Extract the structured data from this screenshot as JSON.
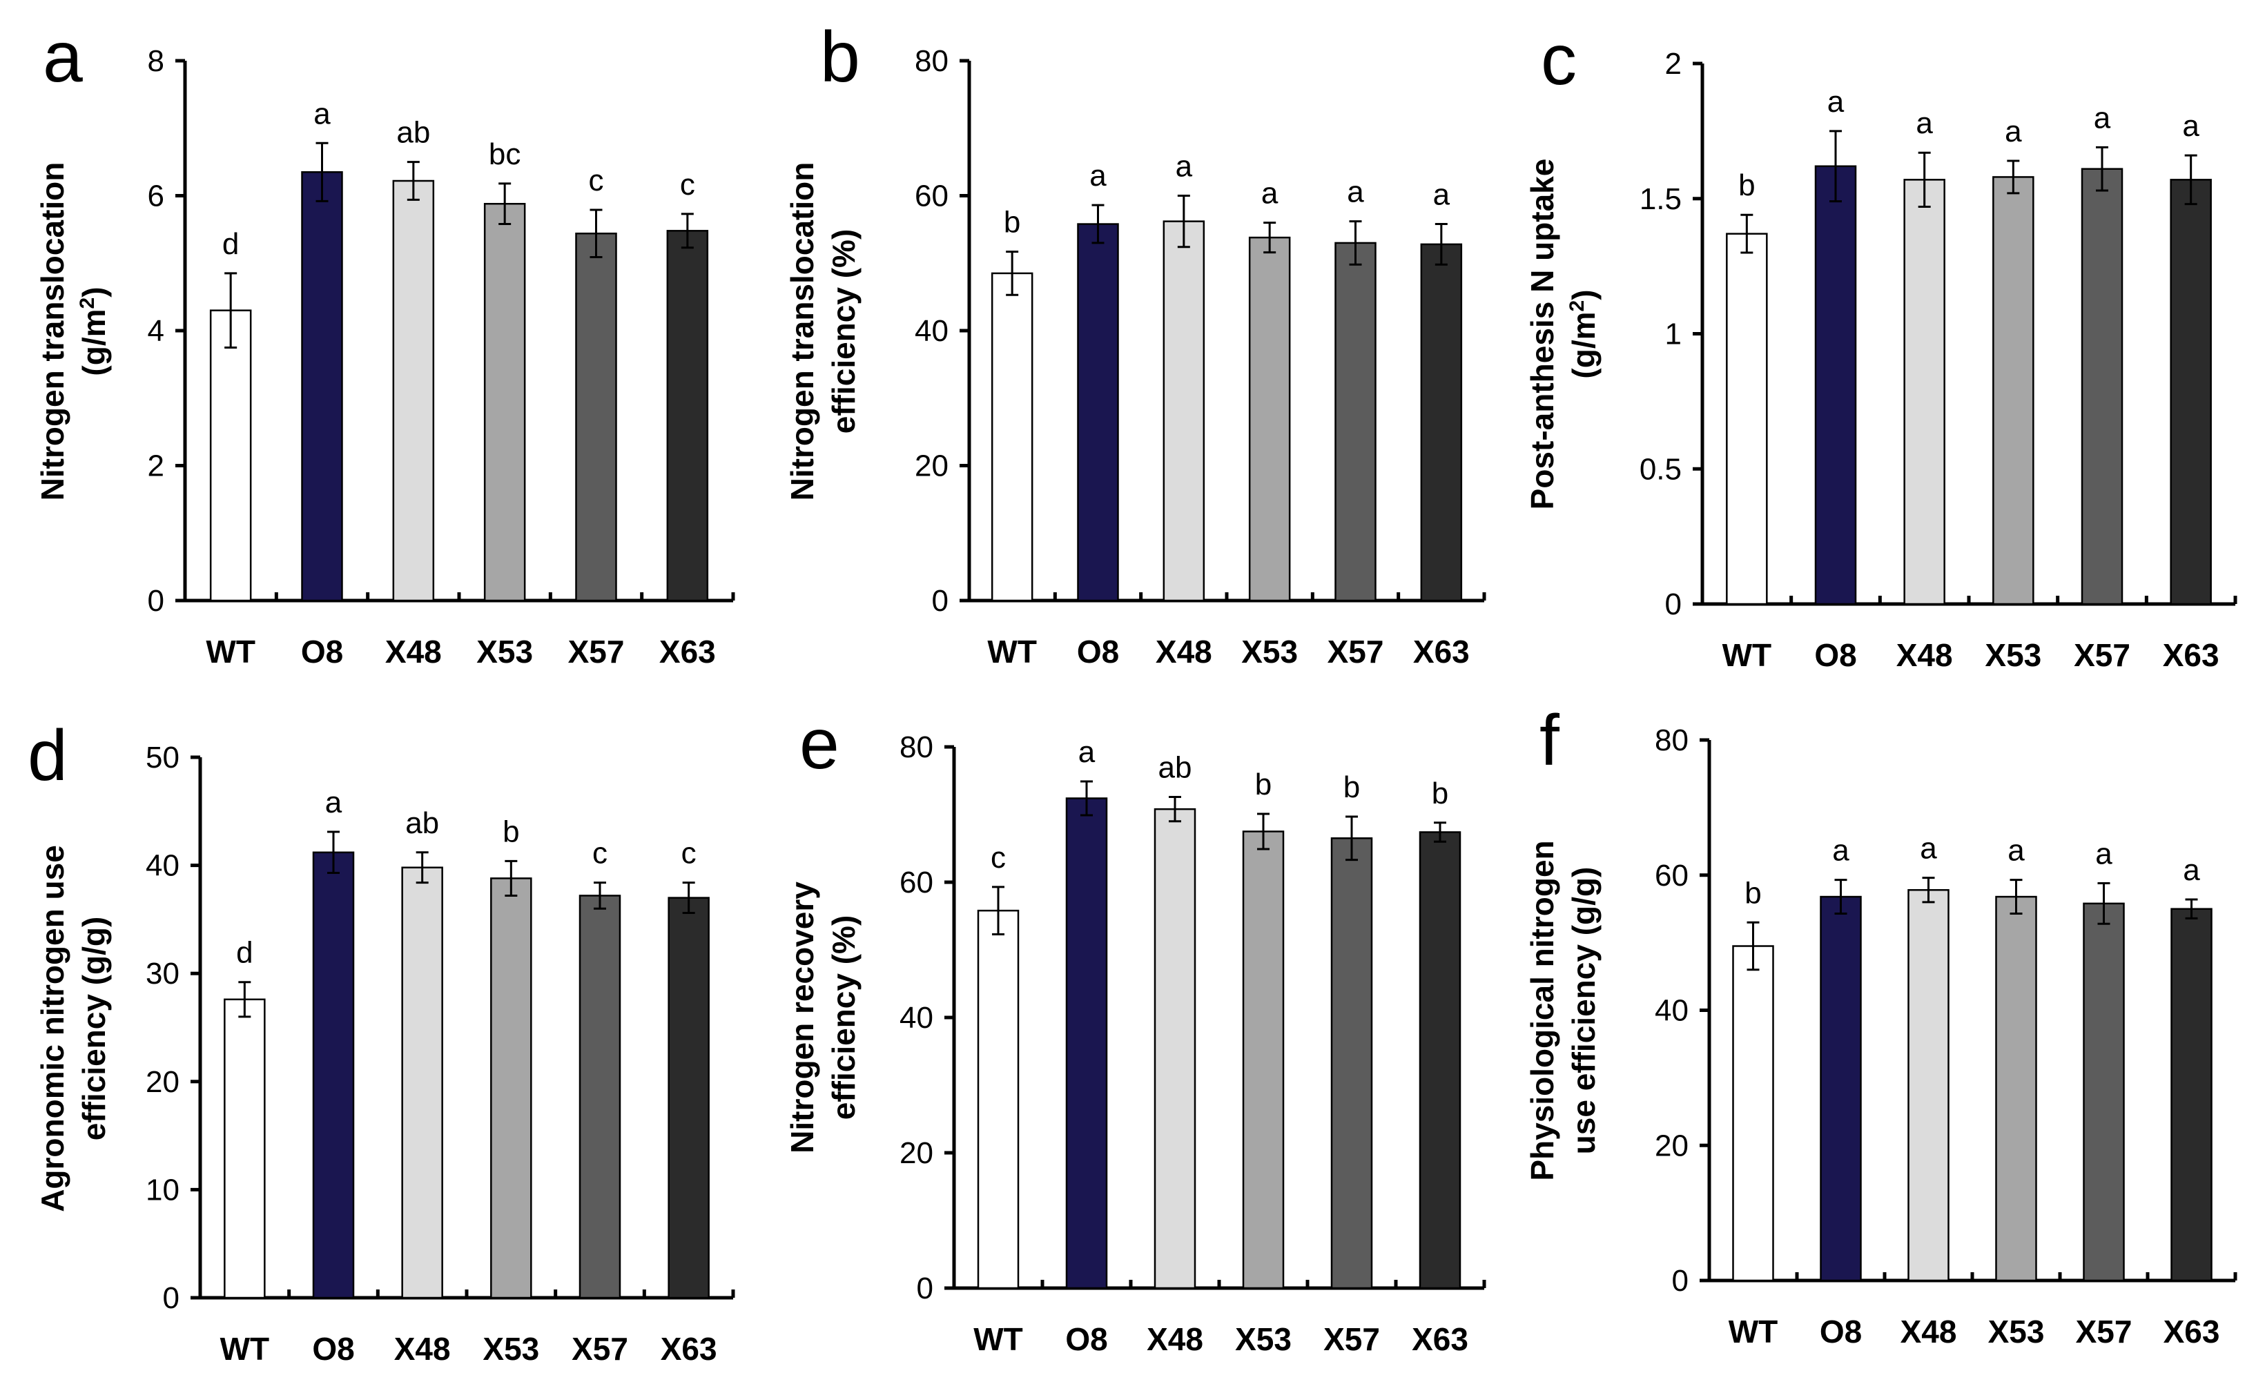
{
  "categories": [
    "WT",
    "O8",
    "X48",
    "X53",
    "X57",
    "X63"
  ],
  "bar_colors": [
    "#ffffff",
    "#1a1650",
    "#dcdcdc",
    "#a6a6a6",
    "#5c5c5c",
    "#2b2b2b"
  ],
  "chart_data": [
    {
      "panel": "a",
      "type": "bar",
      "ylabel": [
        "Nitrogen translocation",
        "(g/m",
        "2",
        ")"
      ],
      "ylim": [
        0,
        8
      ],
      "yticks": [
        0,
        2,
        4,
        6,
        8
      ],
      "ytick_labels": [
        "0",
        "2",
        "4",
        "6",
        "8"
      ],
      "values": [
        4.3,
        6.35,
        6.22,
        5.88,
        5.44,
        5.48
      ],
      "errors": [
        0.55,
        0.43,
        0.28,
        0.3,
        0.35,
        0.25
      ],
      "letters": [
        "d",
        "a",
        "ab",
        "bc",
        "c",
        "c"
      ]
    },
    {
      "panel": "b",
      "type": "bar",
      "ylabel": [
        "Nitrogen translocation",
        "efficiency (%)"
      ],
      "ylim": [
        0,
        80
      ],
      "yticks": [
        0,
        20,
        40,
        60,
        80
      ],
      "ytick_labels": [
        "0",
        "20",
        "40",
        "60",
        "80"
      ],
      "values": [
        48.5,
        55.8,
        56.2,
        53.8,
        53.0,
        52.8
      ],
      "errors": [
        3.2,
        2.8,
        3.8,
        2.2,
        3.2,
        3.0
      ],
      "letters": [
        "b",
        "a",
        "a",
        "a",
        "a",
        "a"
      ]
    },
    {
      "panel": "c",
      "type": "bar",
      "ylabel": [
        "Post-anthesis N uptake",
        "(g/m",
        "2",
        ")"
      ],
      "ylim": [
        0,
        2
      ],
      "yticks": [
        0,
        0.5,
        1,
        1.5,
        2
      ],
      "ytick_labels": [
        "0",
        "0.5",
        "1",
        "1.5",
        "2"
      ],
      "values": [
        1.37,
        1.62,
        1.57,
        1.58,
        1.61,
        1.57
      ],
      "errors": [
        0.07,
        0.13,
        0.1,
        0.06,
        0.08,
        0.09
      ],
      "letters": [
        "b",
        "a",
        "a",
        "a",
        "a",
        "a"
      ]
    },
    {
      "panel": "d",
      "type": "bar",
      "ylabel": [
        "Agronomic nitrogen use",
        "efficiency (g/g)"
      ],
      "ylim": [
        0,
        50
      ],
      "yticks": [
        0,
        10,
        20,
        30,
        40,
        50
      ],
      "ytick_labels": [
        "0",
        "10",
        "20",
        "30",
        "40",
        "50"
      ],
      "values": [
        27.6,
        41.2,
        39.8,
        38.8,
        37.2,
        37.0
      ],
      "errors": [
        1.6,
        1.9,
        1.4,
        1.6,
        1.2,
        1.4
      ],
      "letters": [
        "d",
        "a",
        "ab",
        "b",
        "c",
        "c"
      ]
    },
    {
      "panel": "e",
      "type": "bar",
      "ylabel": [
        "Nitrogen recovery",
        "efficiency (%)"
      ],
      "ylim": [
        0,
        80
      ],
      "yticks": [
        0,
        20,
        40,
        60,
        80
      ],
      "ytick_labels": [
        "0",
        "20",
        "40",
        "60",
        "80"
      ],
      "values": [
        55.8,
        72.4,
        70.8,
        67.5,
        66.5,
        67.4
      ],
      "errors": [
        3.5,
        2.5,
        1.8,
        2.6,
        3.2,
        1.4
      ],
      "letters": [
        "c",
        "a",
        "ab",
        "b",
        "b",
        "b"
      ]
    },
    {
      "panel": "f",
      "type": "bar",
      "ylabel": [
        "Physiological nitrogen",
        "use efficiency (g/g)"
      ],
      "ylim": [
        0,
        80
      ],
      "yticks": [
        0,
        20,
        40,
        60,
        80
      ],
      "ytick_labels": [
        "0",
        "20",
        "40",
        "60",
        "80"
      ],
      "values": [
        49.5,
        56.8,
        57.8,
        56.8,
        55.8,
        55.0
      ],
      "errors": [
        3.5,
        2.5,
        1.8,
        2.5,
        3.0,
        1.4
      ],
      "letters": [
        "b",
        "a",
        "a",
        "a",
        "a",
        "a"
      ]
    }
  ]
}
